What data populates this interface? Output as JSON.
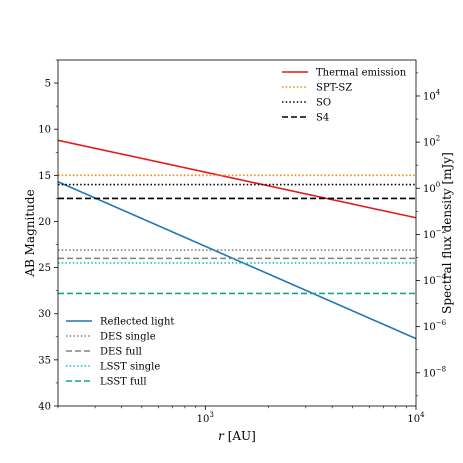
{
  "chart_data": {
    "type": "line",
    "xlabel": "r [AU]",
    "ylabel_left": "AB Magnitude",
    "ylabel_right": "Spectral flux density [mJy]",
    "xscale": "log",
    "xlim": [
      200,
      10000
    ],
    "ylim_left_mag": [
      40,
      2.5
    ],
    "right_axis_log": true,
    "grid": false,
    "x_ticks": [
      {
        "value": 1000,
        "base": "10",
        "exp": "3"
      },
      {
        "value": 10000,
        "base": "10",
        "exp": "4"
      }
    ],
    "y_ticks_left": [
      "5",
      "10",
      "15",
      "20",
      "25",
      "30",
      "35",
      "40"
    ],
    "y_ticks_right": [
      {
        "base": "10",
        "exp": "4"
      },
      {
        "base": "10",
        "exp": "2"
      },
      {
        "base": "10",
        "exp": "0"
      },
      {
        "base": "10",
        "exp": "−2"
      },
      {
        "base": "10",
        "exp": "−4"
      },
      {
        "base": "10",
        "exp": "−6"
      },
      {
        "base": "10",
        "exp": "−8"
      }
    ],
    "series": [
      {
        "name": "Thermal emission",
        "kind": "line",
        "color": "#e41a1c",
        "style": "solid",
        "x": [
          200,
          10000
        ],
        "y": [
          11.2,
          19.6
        ]
      },
      {
        "name": "Reflected light",
        "kind": "line",
        "color": "#1f77b4",
        "style": "solid",
        "x": [
          200,
          10000
        ],
        "y": [
          15.7,
          32.7
        ]
      },
      {
        "name": "SPT-SZ",
        "kind": "hline",
        "color": "#ff7f0e",
        "style": "dotted",
        "y": 15.0
      },
      {
        "name": "SO",
        "kind": "hline",
        "color": "#000000",
        "style": "dotted",
        "y": 16.0
      },
      {
        "name": "S4",
        "kind": "hline",
        "color": "#000000",
        "style": "dashed",
        "y": 17.5
      },
      {
        "name": "DES single",
        "kind": "hline",
        "color": "#808080",
        "style": "dotted",
        "y": 23.1
      },
      {
        "name": "DES full",
        "kind": "hline",
        "color": "#808080",
        "style": "dashed",
        "y": 24.0
      },
      {
        "name": "LSST single",
        "kind": "hline",
        "color": "#17becf",
        "style": "dotted",
        "y": 24.5
      },
      {
        "name": "LSST full",
        "kind": "hline",
        "color": "#17a589",
        "style": "dashed",
        "y": 27.8
      }
    ],
    "legend_top_right": [
      "Thermal emission",
      "SPT-SZ",
      "SO",
      "S4"
    ],
    "legend_bottom_left": [
      "Reflected light",
      "DES single",
      "DES full",
      "LSST single",
      "LSST full"
    ]
  }
}
